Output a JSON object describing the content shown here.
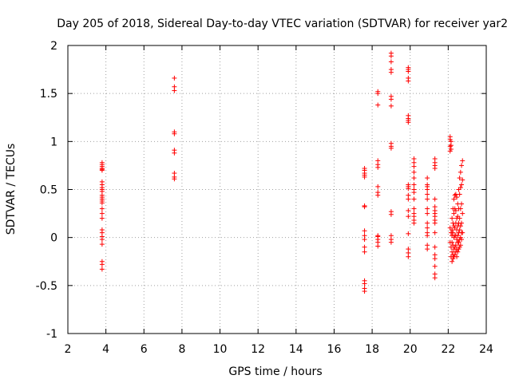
{
  "chart_data": {
    "type": "scatter",
    "title": "Day 205 of 2018, Sidereal Day-to-day VTEC variation (SDTVAR) for receiver yar2",
    "xlabel": "GPS time / hours",
    "ylabel": "SDTVAR / TECUs",
    "xlim": [
      2,
      24
    ],
    "ylim": [
      -1,
      2
    ],
    "xticks": [
      2,
      4,
      6,
      8,
      10,
      12,
      14,
      16,
      18,
      20,
      22,
      24
    ],
    "yticks": [
      -1,
      -0.5,
      0,
      0.5,
      1,
      1.5,
      2
    ],
    "xtick_labels": [
      "2",
      "4",
      "6",
      "8",
      "10",
      "12",
      "14",
      "16",
      "18",
      "20",
      "22",
      "24"
    ],
    "ytick_labels": [
      "-1",
      "-0.5",
      "0",
      "0.5",
      "1",
      "1.5",
      "2"
    ],
    "grid": true,
    "marker": "+",
    "color": "#ff0000",
    "series": [
      {
        "name": "SDTVAR",
        "x": [
          3.8,
          3.8,
          3.8,
          3.8,
          3.8,
          3.8,
          3.8,
          3.8,
          3.8,
          3.8,
          3.8,
          3.8,
          3.8,
          3.8,
          3.8,
          3.8,
          3.8,
          3.8,
          3.8,
          3.8,
          3.8,
          3.8,
          3.8,
          3.8,
          3.8,
          3.8,
          3.8,
          7.6,
          7.6,
          7.6,
          7.6,
          7.6,
          7.6,
          7.6,
          7.6,
          7.6,
          7.6,
          17.6,
          17.6,
          17.6,
          17.6,
          17.6,
          17.6,
          17.6,
          17.6,
          17.6,
          17.6,
          17.6,
          17.6,
          17.6,
          17.6,
          17.6,
          17.6,
          18.3,
          18.3,
          18.3,
          18.3,
          18.3,
          18.3,
          18.3,
          18.3,
          18.3,
          18.3,
          18.3,
          18.3,
          18.3,
          18.3,
          19.0,
          19.0,
          19.0,
          19.0,
          19.0,
          19.0,
          19.0,
          19.0,
          19.0,
          19.0,
          19.0,
          19.0,
          19.0,
          19.0,
          19.0,
          19.0,
          19.9,
          19.9,
          19.9,
          19.9,
          19.9,
          19.9,
          19.9,
          19.9,
          19.9,
          19.9,
          19.9,
          19.9,
          19.9,
          19.9,
          19.9,
          19.9,
          19.9,
          19.9,
          19.9,
          19.9,
          20.2,
          20.2,
          20.2,
          20.2,
          20.2,
          20.2,
          20.2,
          20.2,
          20.2,
          20.2,
          20.2,
          20.2,
          20.2,
          20.2,
          20.9,
          20.9,
          20.9,
          20.9,
          20.9,
          20.9,
          20.9,
          20.9,
          20.9,
          20.9,
          20.9,
          20.9,
          20.9,
          20.9,
          21.3,
          21.3,
          21.3,
          21.3,
          21.3,
          21.3,
          21.3,
          21.3,
          21.3,
          21.3,
          21.3,
          21.3,
          21.3,
          21.3,
          21.3,
          21.3,
          21.3,
          21.3,
          22.1,
          22.1,
          22.1,
          22.1,
          22.1,
          22.1,
          22.15,
          22.15,
          22.15,
          22.15,
          22.15,
          22.15,
          22.2,
          22.2,
          22.2,
          22.2,
          22.2,
          22.2,
          22.25,
          22.25,
          22.25,
          22.25,
          22.25,
          22.25,
          22.3,
          22.3,
          22.3,
          22.3,
          22.3,
          22.3,
          22.35,
          22.35,
          22.35,
          22.35,
          22.35,
          22.35,
          22.4,
          22.4,
          22.4,
          22.4,
          22.4,
          22.4,
          22.45,
          22.45,
          22.45,
          22.45,
          22.45,
          22.45,
          22.5,
          22.5,
          22.5,
          22.5,
          22.5,
          22.5,
          22.55,
          22.55,
          22.55,
          22.55,
          22.55,
          22.55,
          22.6,
          22.6,
          22.6,
          22.6,
          22.6,
          22.6,
          22.65,
          22.65,
          22.65,
          22.65,
          22.65,
          22.65,
          22.7,
          22.7,
          22.7,
          22.7,
          22.7,
          22.7,
          22.75,
          22.75,
          22.75,
          22.75
        ],
        "y": [
          0.78,
          0.76,
          0.74,
          0.72,
          0.71,
          0.7,
          0.58,
          0.55,
          0.52,
          0.5,
          0.48,
          0.44,
          0.42,
          0.4,
          0.38,
          0.36,
          0.3,
          0.25,
          0.2,
          0.08,
          0.05,
          0.01,
          -0.02,
          -0.07,
          -0.25,
          -0.28,
          -0.33,
          1.66,
          1.57,
          1.53,
          1.1,
          1.08,
          0.91,
          0.88,
          0.67,
          0.63,
          0.61,
          0.72,
          0.7,
          0.67,
          0.65,
          0.63,
          0.33,
          0.32,
          0.07,
          0.02,
          -0.02,
          -0.1,
          -0.15,
          -0.45,
          -0.48,
          -0.53,
          -0.56,
          1.52,
          1.5,
          1.38,
          0.8,
          0.76,
          0.73,
          0.53,
          0.47,
          0.44,
          0.02,
          0.01,
          -0.02,
          -0.05,
          -0.09,
          1.92,
          1.89,
          1.83,
          1.75,
          1.72,
          1.47,
          1.44,
          1.37,
          0.98,
          0.95,
          0.93,
          0.27,
          0.24,
          0.02,
          -0.02,
          -0.05,
          1.77,
          1.75,
          1.73,
          1.66,
          1.63,
          1.27,
          1.24,
          1.22,
          1.2,
          0.55,
          0.53,
          0.51,
          0.44,
          0.4,
          0.28,
          0.22,
          0.04,
          -0.12,
          -0.16,
          -0.2,
          0.82,
          0.78,
          0.74,
          0.68,
          0.62,
          0.55,
          0.5,
          0.47,
          0.4,
          0.3,
          0.25,
          0.22,
          0.18,
          0.15,
          0.62,
          0.55,
          0.53,
          0.5,
          0.45,
          0.4,
          0.3,
          0.25,
          0.15,
          0.1,
          0.05,
          0.02,
          -0.08,
          -0.12,
          0.82,
          0.78,
          0.75,
          0.72,
          0.4,
          0.32,
          0.28,
          0.25,
          0.22,
          0.18,
          0.15,
          0.05,
          -0.1,
          -0.18,
          -0.22,
          -0.3,
          -0.38,
          -0.42,
          1.05,
          1.02,
          0.95,
          0.9,
          0.1,
          -0.05,
          1.0,
          0.96,
          0.92,
          0.05,
          -0.1,
          -0.2,
          0.2,
          0.08,
          0.02,
          -0.05,
          -0.15,
          -0.25,
          0.3,
          0.15,
          0.05,
          -0.08,
          -0.18,
          -0.22,
          0.4,
          0.25,
          0.12,
          0.0,
          -0.12,
          -0.2,
          0.44,
          0.3,
          0.1,
          0.02,
          -0.1,
          -0.18,
          0.45,
          0.28,
          0.15,
          0.02,
          -0.08,
          -0.15,
          0.42,
          0.2,
          0.08,
          -0.02,
          -0.12,
          -0.2,
          0.35,
          0.22,
          0.12,
          0.02,
          -0.05,
          -0.15,
          0.5,
          0.3,
          0.15,
          0.05,
          -0.05,
          -0.12,
          0.62,
          0.45,
          0.2,
          0.08,
          -0.02,
          -0.1,
          0.68,
          0.52,
          0.3,
          0.12,
          0.0,
          -0.08,
          0.75,
          0.55,
          0.35,
          0.15,
          0.05,
          -0.02,
          0.8,
          0.6,
          0.25,
          0.05
        ]
      }
    ]
  }
}
